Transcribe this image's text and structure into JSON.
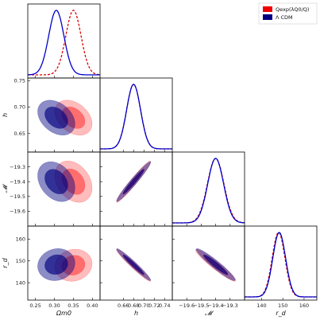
{
  "chart_data": {
    "type": "corner-plot",
    "parameters": [
      {
        "key": "omega_m0",
        "label": "Ωm0",
        "ticks": [
          "0.25",
          "0.30",
          "0.35",
          "0.40"
        ],
        "tick_values": [
          0.25,
          0.3,
          0.35,
          0.4
        ],
        "range": [
          0.23,
          0.42
        ]
      },
      {
        "key": "h",
        "label": "h",
        "ticks": [
          "0.66",
          "0.68",
          "0.70",
          "0.72",
          "0.74"
        ],
        "tick_values": [
          0.66,
          0.68,
          0.7,
          0.72,
          0.74
        ],
        "y_ticks": [
          "0.65",
          "0.70",
          "0.75"
        ],
        "y_tick_values": [
          0.65,
          0.7,
          0.75
        ],
        "range": [
          0.615,
          0.755
        ]
      },
      {
        "key": "M",
        "label": "𝓜",
        "ticks": [
          "−19.6",
          "−19.5",
          "−19.4",
          "−19.3"
        ],
        "tick_values": [
          -19.6,
          -19.5,
          -19.4,
          -19.3
        ],
        "y_ticks": [
          "−19.3",
          "−19.4",
          "−19.5",
          "−19.6"
        ],
        "y_tick_values": [
          -19.3,
          -19.4,
          -19.5,
          -19.6
        ],
        "range": [
          -19.7,
          -19.2
        ]
      },
      {
        "key": "r_d",
        "label": "r_d",
        "ticks": [
          "140",
          "150",
          "160"
        ],
        "tick_values": [
          140,
          150,
          160
        ],
        "y_ticks": [
          "160",
          "150",
          "140"
        ],
        "y_tick_values": [
          160,
          150,
          140
        ],
        "range": [
          132,
          166
        ]
      }
    ],
    "legend": {
      "placement": "top-right",
      "entries": [
        {
          "name": "Qexp(λQ0/Q)",
          "color": "#ee0000"
        },
        {
          "name": "Λ CDM",
          "color": "#000080"
        }
      ]
    },
    "series": [
      {
        "name": "Qexp(λQ0/Q)",
        "line_color": "#dd0000",
        "line_style": "dashed",
        "fill_color": "#ff2020",
        "means": {
          "omega_m0": 0.35,
          "h": 0.68,
          "M": -19.4,
          "r_d": 148.0
        },
        "sigmas": {
          "omega_m0": 0.02,
          "h": 0.0135,
          "M": 0.057,
          "r_d": 3.0
        }
      },
      {
        "name": "Λ CDM",
        "line_color": "#0000cc",
        "line_style": "solid",
        "fill_color": "#000080",
        "means": {
          "omega_m0": 0.305,
          "h": 0.68,
          "M": -19.4,
          "r_d": 148.3
        },
        "sigmas": {
          "omega_m0": 0.02,
          "h": 0.0135,
          "M": 0.055,
          "r_d": 3.0
        }
      }
    ],
    "correlations": {
      "omega_m0_h": -0.35,
      "omega_m0_M": -0.3,
      "omega_m0_r_d": 0.1,
      "h_M": 0.97,
      "h_r_d": -0.97,
      "M_r_d": -0.95
    },
    "contour_levels": [
      "68%",
      "95%"
    ],
    "grid": false
  }
}
